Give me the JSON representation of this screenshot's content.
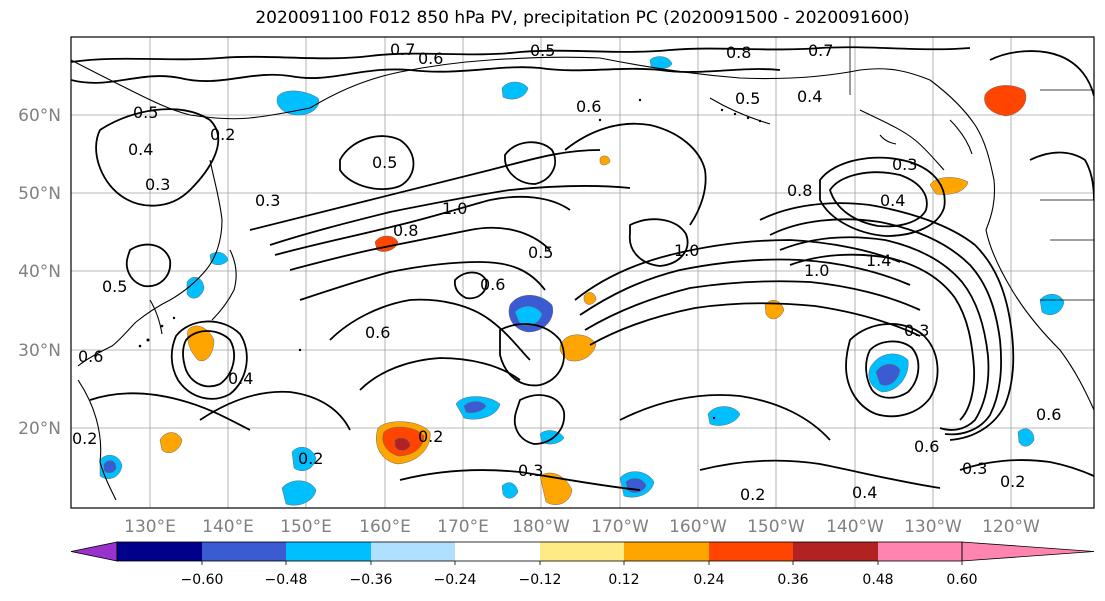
{
  "title": "2020091100 F012 850 hPa PV, precipitation PC (2020091500 - 2020091600)",
  "map": {
    "lat_labels": [
      "60°N",
      "50°N",
      "40°N",
      "30°N",
      "20°N"
    ],
    "lon_labels": [
      "130°E",
      "140°E",
      "150°E",
      "160°E",
      "170°E",
      "180°W",
      "170°W",
      "160°W",
      "150°W",
      "140°W",
      "130°W",
      "120°W"
    ],
    "contour_labels": [
      "0.7",
      "0.6",
      "0.5",
      "0.8",
      "0.7",
      "0.6",
      "0.5",
      "0.4",
      "0.5",
      "0.4",
      "0.3",
      "0.2",
      "0.5",
      "0.3",
      "1.0",
      "0.8",
      "0.5",
      "0.6",
      "0.6",
      "1.0",
      "1.0",
      "1.4",
      "0.8",
      "0.4",
      "0.3",
      "0.3",
      "0.5",
      "0.4",
      "0.2",
      "0.3",
      "0.2",
      "0.4",
      "0.3",
      "0.6",
      "0.2",
      "0.2",
      "0.6",
      "0.2",
      "0.6"
    ]
  },
  "colorbar": {
    "ticks": [
      "−0.60",
      "−0.48",
      "−0.36",
      "−0.24",
      "−0.12",
      "0.12",
      "0.24",
      "0.36",
      "0.48",
      "0.60"
    ],
    "colors": [
      "#9932cc",
      "#00008b",
      "#3a5bd1",
      "#00bfff",
      "#b0e0ff",
      "#ffffff",
      "#ffeb85",
      "#ffa500",
      "#ff4500",
      "#b22222",
      "#ff85b0"
    ]
  }
}
